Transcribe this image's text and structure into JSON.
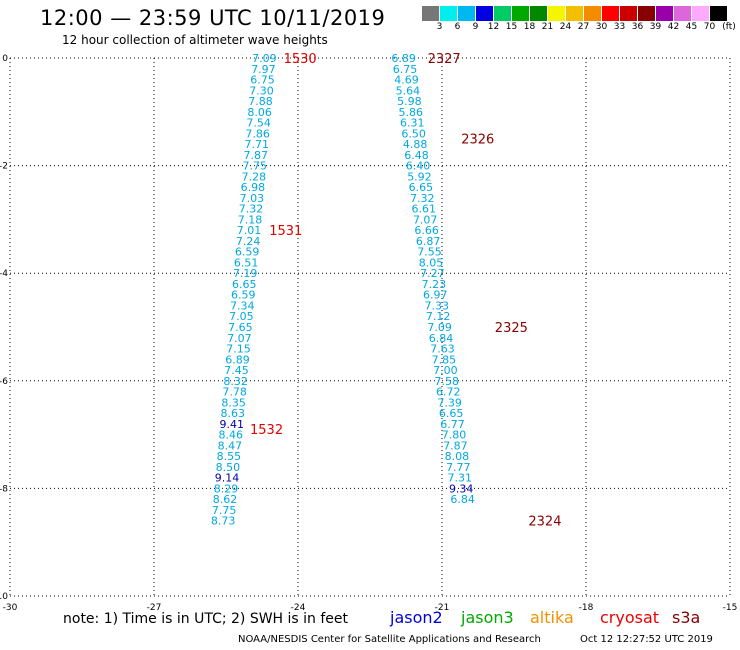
{
  "header": {
    "title": "12:00 — 23:59 UTC 10/11/2019",
    "subtitle": "12 hour collection of altimeter wave heights"
  },
  "colorbar": {
    "unit_label": "(ft)",
    "swatches": [
      {
        "color": "#777777",
        "label": "3"
      },
      {
        "color": "#00eeee",
        "label": "6"
      },
      {
        "color": "#00b8f0",
        "label": "9"
      },
      {
        "color": "#0000e0",
        "label": "12"
      },
      {
        "color": "#00cc66",
        "label": "15"
      },
      {
        "color": "#00a800",
        "label": "18"
      },
      {
        "color": "#008800",
        "label": "21"
      },
      {
        "color": "#f5f500",
        "label": "24"
      },
      {
        "color": "#f2c000",
        "label": "27"
      },
      {
        "color": "#f58c00",
        "label": "30"
      },
      {
        "color": "#ff0000",
        "label": "33"
      },
      {
        "color": "#cc0000",
        "label": "36"
      },
      {
        "color": "#880000",
        "label": "39"
      },
      {
        "color": "#9900aa",
        "label": "42"
      },
      {
        "color": "#dd66dd",
        "label": "45"
      },
      {
        "color": "#ffaaff",
        "label": "70"
      },
      {
        "color": "#000000",
        "label": ""
      }
    ]
  },
  "chart_data": {
    "type": "scatter",
    "xlim": [
      -30,
      -15
    ],
    "ylim": [
      -10,
      0
    ],
    "x_ticks": [
      "-30",
      "-27",
      "-24",
      "-21",
      "-18",
      "-15"
    ],
    "y_ticks": [
      "0",
      "-2",
      "-4",
      "-6",
      "-8",
      "-10"
    ],
    "grid": true,
    "colors": {
      "light": "#00a8e0",
      "dark": "#0000aa",
      "time_west": "#e00000",
      "time_east": "#8a0000"
    },
    "tracks": [
      {
        "name": "west",
        "points": [
          {
            "x": -24.7,
            "y": 0.0,
            "label": "7.09"
          },
          {
            "x": -24.72,
            "y": -0.2,
            "label": "7.97"
          },
          {
            "x": -24.74,
            "y": -0.4,
            "label": "6.75"
          },
          {
            "x": -24.76,
            "y": -0.6,
            "label": "7.30"
          },
          {
            "x": -24.78,
            "y": -0.8,
            "label": "7.88"
          },
          {
            "x": -24.8,
            "y": -1.0,
            "label": "8.06"
          },
          {
            "x": -24.82,
            "y": -1.2,
            "label": "7.54"
          },
          {
            "x": -24.84,
            "y": -1.4,
            "label": "7.86"
          },
          {
            "x": -24.86,
            "y": -1.6,
            "label": "7.71"
          },
          {
            "x": -24.88,
            "y": -1.8,
            "label": "7.87"
          },
          {
            "x": -24.9,
            "y": -2.0,
            "label": "7.75"
          },
          {
            "x": -24.92,
            "y": -2.2,
            "label": "7.28"
          },
          {
            "x": -24.94,
            "y": -2.4,
            "label": "6.98"
          },
          {
            "x": -24.96,
            "y": -2.6,
            "label": "7.03"
          },
          {
            "x": -24.98,
            "y": -2.8,
            "label": "7.32"
          },
          {
            "x": -25.0,
            "y": -3.0,
            "label": "7.18"
          },
          {
            "x": -25.02,
            "y": -3.2,
            "label": "7.01"
          },
          {
            "x": -25.04,
            "y": -3.4,
            "label": "7.24"
          },
          {
            "x": -25.06,
            "y": -3.6,
            "label": "6.59"
          },
          {
            "x": -25.08,
            "y": -3.8,
            "label": "6.51"
          },
          {
            "x": -25.1,
            "y": -4.0,
            "label": "7.19"
          },
          {
            "x": -25.12,
            "y": -4.2,
            "label": "6.65"
          },
          {
            "x": -25.14,
            "y": -4.4,
            "label": "6.59"
          },
          {
            "x": -25.16,
            "y": -4.6,
            "label": "7.34"
          },
          {
            "x": -25.18,
            "y": -4.8,
            "label": "7.05"
          },
          {
            "x": -25.2,
            "y": -5.0,
            "label": "7.65"
          },
          {
            "x": -25.22,
            "y": -5.2,
            "label": "7.07"
          },
          {
            "x": -25.24,
            "y": -5.4,
            "label": "7.15"
          },
          {
            "x": -25.26,
            "y": -5.6,
            "label": "6.89"
          },
          {
            "x": -25.28,
            "y": -5.8,
            "label": "7.45"
          },
          {
            "x": -25.3,
            "y": -6.0,
            "label": "8.32"
          },
          {
            "x": -25.32,
            "y": -6.2,
            "label": "7.78"
          },
          {
            "x": -25.34,
            "y": -6.4,
            "label": "8.35"
          },
          {
            "x": -25.36,
            "y": -6.6,
            "label": "8.63"
          },
          {
            "x": -25.38,
            "y": -6.8,
            "label": "9.41",
            "dark": true
          },
          {
            "x": -25.4,
            "y": -7.0,
            "label": "8.46"
          },
          {
            "x": -25.42,
            "y": -7.2,
            "label": "8.47"
          },
          {
            "x": -25.44,
            "y": -7.4,
            "label": "8.55"
          },
          {
            "x": -25.46,
            "y": -7.6,
            "label": "8.50"
          },
          {
            "x": -25.48,
            "y": -7.8,
            "label": "9.14",
            "dark": true
          },
          {
            "x": -25.5,
            "y": -8.0,
            "label": "8.29"
          },
          {
            "x": -25.52,
            "y": -8.2,
            "label": "8.62"
          },
          {
            "x": -25.54,
            "y": -8.4,
            "label": "7.75"
          },
          {
            "x": -25.56,
            "y": -8.6,
            "label": "8.73"
          }
        ],
        "time_labels": [
          {
            "x": -24.3,
            "y": 0.0,
            "label": "1530"
          },
          {
            "x": -24.6,
            "y": -3.2,
            "label": "1531"
          },
          {
            "x": -25.0,
            "y": -6.9,
            "label": "1532"
          }
        ]
      },
      {
        "name": "east",
        "points": [
          {
            "x": -21.8,
            "y": 0.0,
            "label": "6.89"
          },
          {
            "x": -21.77,
            "y": -0.2,
            "label": "6.75"
          },
          {
            "x": -21.74,
            "y": -0.4,
            "label": "4.69"
          },
          {
            "x": -21.71,
            "y": -0.6,
            "label": "5.64"
          },
          {
            "x": -21.68,
            "y": -0.8,
            "label": "5.98"
          },
          {
            "x": -21.65,
            "y": -1.0,
            "label": "5.86"
          },
          {
            "x": -21.62,
            "y": -1.2,
            "label": "6.31"
          },
          {
            "x": -21.59,
            "y": -1.4,
            "label": "6.50"
          },
          {
            "x": -21.56,
            "y": -1.6,
            "label": "4.88"
          },
          {
            "x": -21.53,
            "y": -1.8,
            "label": "6.48"
          },
          {
            "x": -21.5,
            "y": -2.0,
            "label": "6.40"
          },
          {
            "x": -21.47,
            "y": -2.2,
            "label": "5.92"
          },
          {
            "x": -21.44,
            "y": -2.4,
            "label": "6.65"
          },
          {
            "x": -21.41,
            "y": -2.6,
            "label": "7.32"
          },
          {
            "x": -21.38,
            "y": -2.8,
            "label": "6.61"
          },
          {
            "x": -21.35,
            "y": -3.0,
            "label": "7.07"
          },
          {
            "x": -21.32,
            "y": -3.2,
            "label": "6.66"
          },
          {
            "x": -21.29,
            "y": -3.4,
            "label": "6.87"
          },
          {
            "x": -21.26,
            "y": -3.6,
            "label": "7.55"
          },
          {
            "x": -21.23,
            "y": -3.8,
            "label": "8.05"
          },
          {
            "x": -21.2,
            "y": -4.0,
            "label": "7.27"
          },
          {
            "x": -21.17,
            "y": -4.2,
            "label": "7.23"
          },
          {
            "x": -21.14,
            "y": -4.4,
            "label": "6.97"
          },
          {
            "x": -21.11,
            "y": -4.6,
            "label": "7.33"
          },
          {
            "x": -21.08,
            "y": -4.8,
            "label": "7.12"
          },
          {
            "x": -21.05,
            "y": -5.0,
            "label": "7.09"
          },
          {
            "x": -21.02,
            "y": -5.2,
            "label": "6.84"
          },
          {
            "x": -20.99,
            "y": -5.4,
            "label": "7.63"
          },
          {
            "x": -20.96,
            "y": -5.6,
            "label": "7.85"
          },
          {
            "x": -20.93,
            "y": -5.8,
            "label": "7.00"
          },
          {
            "x": -20.9,
            "y": -6.0,
            "label": "7.58"
          },
          {
            "x": -20.87,
            "y": -6.2,
            "label": "6.72"
          },
          {
            "x": -20.84,
            "y": -6.4,
            "label": "7.39"
          },
          {
            "x": -20.81,
            "y": -6.6,
            "label": "6.65"
          },
          {
            "x": -20.78,
            "y": -6.8,
            "label": "6.77"
          },
          {
            "x": -20.75,
            "y": -7.0,
            "label": "7.80"
          },
          {
            "x": -20.72,
            "y": -7.2,
            "label": "7.87"
          },
          {
            "x": -20.69,
            "y": -7.4,
            "label": "8.08"
          },
          {
            "x": -20.66,
            "y": -7.6,
            "label": "7.77"
          },
          {
            "x": -20.63,
            "y": -7.8,
            "label": "7.31"
          },
          {
            "x": -20.6,
            "y": -8.0,
            "label": "9.34",
            "dark": true
          },
          {
            "x": -20.57,
            "y": -8.2,
            "label": "6.84"
          }
        ],
        "time_labels": [
          {
            "x": -21.3,
            "y": 0.0,
            "label": "2327"
          },
          {
            "x": -20.6,
            "y": -1.5,
            "label": "2326"
          },
          {
            "x": -19.9,
            "y": -5.0,
            "label": "2325"
          },
          {
            "x": -19.2,
            "y": -8.6,
            "label": "2324"
          }
        ]
      }
    ]
  },
  "footer": {
    "note": "note:  1) Time is in UTC;  2) SWH is in feet",
    "legend": [
      {
        "label": "jason2",
        "color": "#0000dd"
      },
      {
        "label": "jason3",
        "color": "#00aa00"
      },
      {
        "label": "altika",
        "color": "#f59000"
      },
      {
        "label": "cryosat",
        "color": "#ee0000"
      },
      {
        "label": "s3a",
        "color": "#880000"
      }
    ],
    "credit": "NOAA/NESDIS Center for Satellite Applications and Research",
    "timestamp": "Oct 12 12:27:52 UTC 2019"
  }
}
